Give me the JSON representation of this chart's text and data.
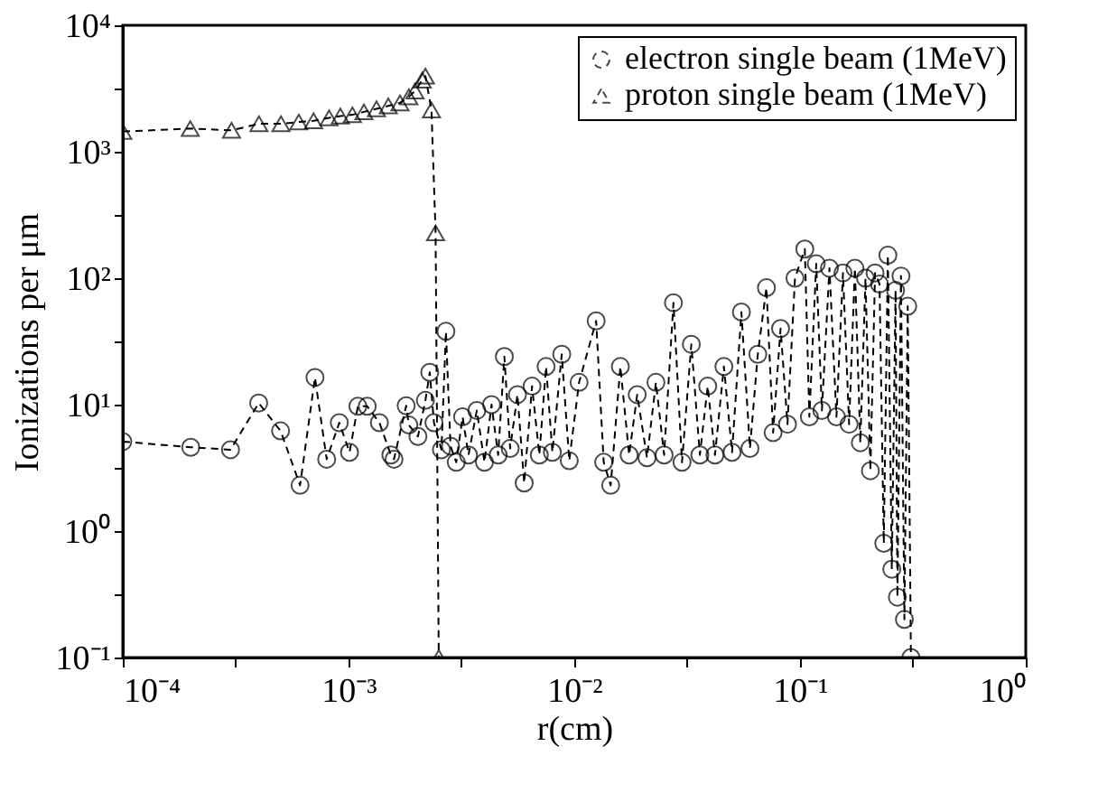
{
  "chart_data": {
    "type": "line",
    "xlabel": "r(cm)",
    "ylabel": "Ionizations per μm",
    "log": "xy",
    "xlim": [
      0.0001,
      1
    ],
    "ylim": [
      0.1,
      10000
    ],
    "xticks": [
      {
        "value": 0.0001,
        "label": "10⁻⁴"
      },
      {
        "value": 0.0003162,
        "label": null
      },
      {
        "value": 0.001,
        "label": "10⁻³"
      },
      {
        "value": 0.003162,
        "label": null
      },
      {
        "value": 0.01,
        "label": "10⁻²"
      },
      {
        "value": 0.03162,
        "label": null
      },
      {
        "value": 0.1,
        "label": "10⁻¹"
      },
      {
        "value": 0.3162,
        "label": null
      },
      {
        "value": 1,
        "label": "10⁰"
      }
    ],
    "yticks": [
      {
        "value": 0.1,
        "label": "10⁻¹"
      },
      {
        "value": 0.3162,
        "label": null
      },
      {
        "value": 1,
        "label": "10⁰"
      },
      {
        "value": 3.162,
        "label": null
      },
      {
        "value": 10,
        "label": "10¹"
      },
      {
        "value": 31.62,
        "label": null
      },
      {
        "value": 100,
        "label": "10²"
      },
      {
        "value": 316.2,
        "label": null
      },
      {
        "value": 1000,
        "label": "10³"
      },
      {
        "value": 3162,
        "label": null
      },
      {
        "value": 10000,
        "label": "10⁴"
      }
    ],
    "grid": false,
    "legend": "top right",
    "line_style": "dashed",
    "series": [
      {
        "name": "electron single beam (1MeV)",
        "color": "#000000",
        "marker": "circle",
        "x": [
          0.0001,
          0.0002,
          0.0003,
          0.0004,
          0.0005,
          0.00061,
          0.00071,
          0.0008,
          0.00091,
          0.00101,
          0.0011,
          0.00121,
          0.00137,
          0.00154,
          0.00159,
          0.0018,
          0.00185,
          0.00203,
          0.00219,
          0.00229,
          0.00239,
          0.00258,
          0.0027,
          0.00283,
          0.003,
          0.0032,
          0.0034,
          0.0037,
          0.004,
          0.0043,
          0.0046,
          0.0049,
          0.0052,
          0.0056,
          0.006,
          0.0065,
          0.007,
          0.0075,
          0.008,
          0.0088,
          0.0095,
          0.0105,
          0.0125,
          0.0135,
          0.0145,
          0.016,
          0.0175,
          0.019,
          0.021,
          0.023,
          0.025,
          0.0275,
          0.03,
          0.033,
          0.036,
          0.039,
          0.042,
          0.046,
          0.05,
          0.055,
          0.06,
          0.065,
          0.071,
          0.076,
          0.082,
          0.088,
          0.095,
          0.105,
          0.11,
          0.118,
          0.125,
          0.135,
          0.145,
          0.155,
          0.165,
          0.175,
          0.185,
          0.195,
          0.205,
          0.215,
          0.225,
          0.235,
          0.245,
          0.255,
          0.265,
          0.27,
          0.28,
          0.29,
          0.3,
          0.31
        ],
        "values": [
          5.1,
          4.6,
          4.4,
          10.3,
          6.2,
          2.3,
          16.4,
          3.7,
          7.2,
          4.2,
          9.7,
          9.7,
          7.2,
          4.0,
          3.7,
          9.8,
          6.9,
          5.6,
          10.8,
          18,
          7.2,
          4.4,
          38,
          4.7,
          3.5,
          8,
          4,
          9,
          3.5,
          10,
          4,
          24,
          4.5,
          12,
          2.4,
          14,
          4,
          20,
          4.2,
          25,
          3.6,
          15,
          46,
          3.5,
          2.3,
          20,
          4,
          12,
          3.8,
          15,
          4,
          64,
          3.5,
          30,
          4,
          14,
          4,
          20,
          4.2,
          54,
          4.5,
          25,
          84,
          6,
          40,
          7,
          100,
          170,
          8,
          130,
          9,
          120,
          8,
          110,
          7,
          120,
          5,
          100,
          3,
          110,
          90,
          0.8,
          152,
          0.5,
          80,
          0.3,
          104,
          0.2,
          60,
          0.1
        ]
      },
      {
        "name": "proton single beam (1MeV)",
        "color": "#000000",
        "marker": "triangle",
        "x": [
          0.0001,
          0.000199,
          0.000303,
          0.000401,
          0.000502,
          0.000602,
          0.0007,
          0.00082,
          0.00092,
          0.00104,
          0.00117,
          0.00133,
          0.0015,
          0.00169,
          0.00185,
          0.00197,
          0.00212,
          0.00219,
          0.00233,
          0.00243,
          0.00251
        ],
        "values": [
          1445,
          1525,
          1476,
          1663,
          1663,
          1718,
          1757,
          1855,
          1915,
          1959,
          2067,
          2183,
          2305,
          2434,
          2713,
          3025,
          3680,
          3970,
          2140,
          228,
          0.1
        ]
      }
    ]
  }
}
